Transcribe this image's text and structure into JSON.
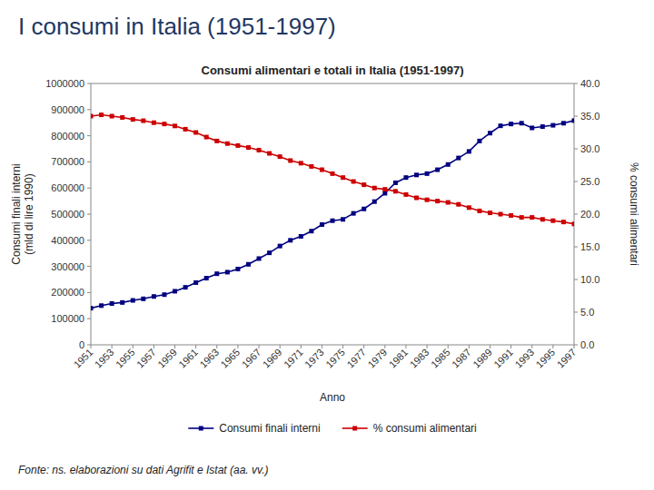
{
  "chart_data": {
    "type": "line",
    "title": "I consumi in Italia (1951-1997)",
    "subtitle": "Consumi alimentari e totali in Italia (1951-1997)",
    "x_label": "Anno",
    "y_label": "Consumi finali interni\n(mld di lire 1990)",
    "y2_label": "% consumi alimentari",
    "annotations": [
      "Fonte: ns. elaborazioni su dati Agrifit e Istat (aa. vv.)"
    ],
    "x": [
      1951,
      1952,
      1953,
      1954,
      1955,
      1956,
      1957,
      1958,
      1959,
      1960,
      1961,
      1962,
      1963,
      1964,
      1965,
      1966,
      1967,
      1968,
      1969,
      1970,
      1971,
      1972,
      1973,
      1974,
      1975,
      1976,
      1977,
      1978,
      1979,
      1980,
      1981,
      1982,
      1983,
      1984,
      1985,
      1986,
      1987,
      1988,
      1989,
      1990,
      1991,
      1992,
      1993,
      1994,
      1995,
      1996,
      1997
    ],
    "series": [
      {
        "name": "Consumi finali interni",
        "color": "#000080",
        "marker": "square",
        "line_style": "solid",
        "values": [
          140000,
          150000,
          158000,
          162000,
          170000,
          176000,
          185000,
          192000,
          205000,
          220000,
          238000,
          255000,
          272000,
          278000,
          290000,
          308000,
          330000,
          352000,
          378000,
          400000,
          415000,
          435000,
          460000,
          475000,
          480000,
          503000,
          520000,
          548000,
          580000,
          620000,
          640000,
          650000,
          655000,
          670000,
          690000,
          715000,
          740000,
          780000,
          810000,
          838000,
          845000,
          848000,
          830000,
          835000,
          840000,
          848000,
          858000
        ]
      },
      {
        "name": "% consumi alimentari",
        "color": "#CC0000",
        "marker": "square",
        "line_style": "solid",
        "axis": "y2",
        "values": [
          35.0,
          35.2,
          35.0,
          34.8,
          34.5,
          34.3,
          34.0,
          33.8,
          33.5,
          33.0,
          32.5,
          31.8,
          31.2,
          30.8,
          30.5,
          30.2,
          29.8,
          29.3,
          28.8,
          28.2,
          27.8,
          27.3,
          26.8,
          26.2,
          25.6,
          25.0,
          24.5,
          24.0,
          23.8,
          23.5,
          23.0,
          22.5,
          22.2,
          22.0,
          21.8,
          21.5,
          21.0,
          20.5,
          20.2,
          20.0,
          19.8,
          19.5,
          19.5,
          19.2,
          19.0,
          18.8,
          18.5
        ]
      }
    ],
    "xlim": [
      1951,
      1997
    ],
    "xticks": [
      1951,
      1953,
      1955,
      1957,
      1959,
      1961,
      1963,
      1965,
      1967,
      1969,
      1971,
      1973,
      1975,
      1977,
      1979,
      1981,
      1983,
      1985,
      1987,
      1989,
      1991,
      1993,
      1995,
      1997
    ],
    "ylim": [
      0,
      1000000
    ],
    "yticks": [
      0,
      100000,
      200000,
      300000,
      400000,
      500000,
      600000,
      700000,
      800000,
      900000,
      1000000
    ],
    "y2lim": [
      0,
      40
    ],
    "y2ticks": [
      {
        "value": 0,
        "label": "0.0"
      },
      {
        "value": 5,
        "label": "5.0"
      },
      {
        "value": 10,
        "label": "10.0"
      },
      {
        "value": 15,
        "label": "15.0"
      },
      {
        "value": 20,
        "label": "20.0"
      },
      {
        "value": 25,
        "label": "25.0"
      },
      {
        "value": 30,
        "label": "30.0"
      },
      {
        "value": 35,
        "label": "35.0"
      },
      {
        "value": 40,
        "label": "40.0"
      }
    ],
    "grid": false,
    "legend": "bottom"
  }
}
